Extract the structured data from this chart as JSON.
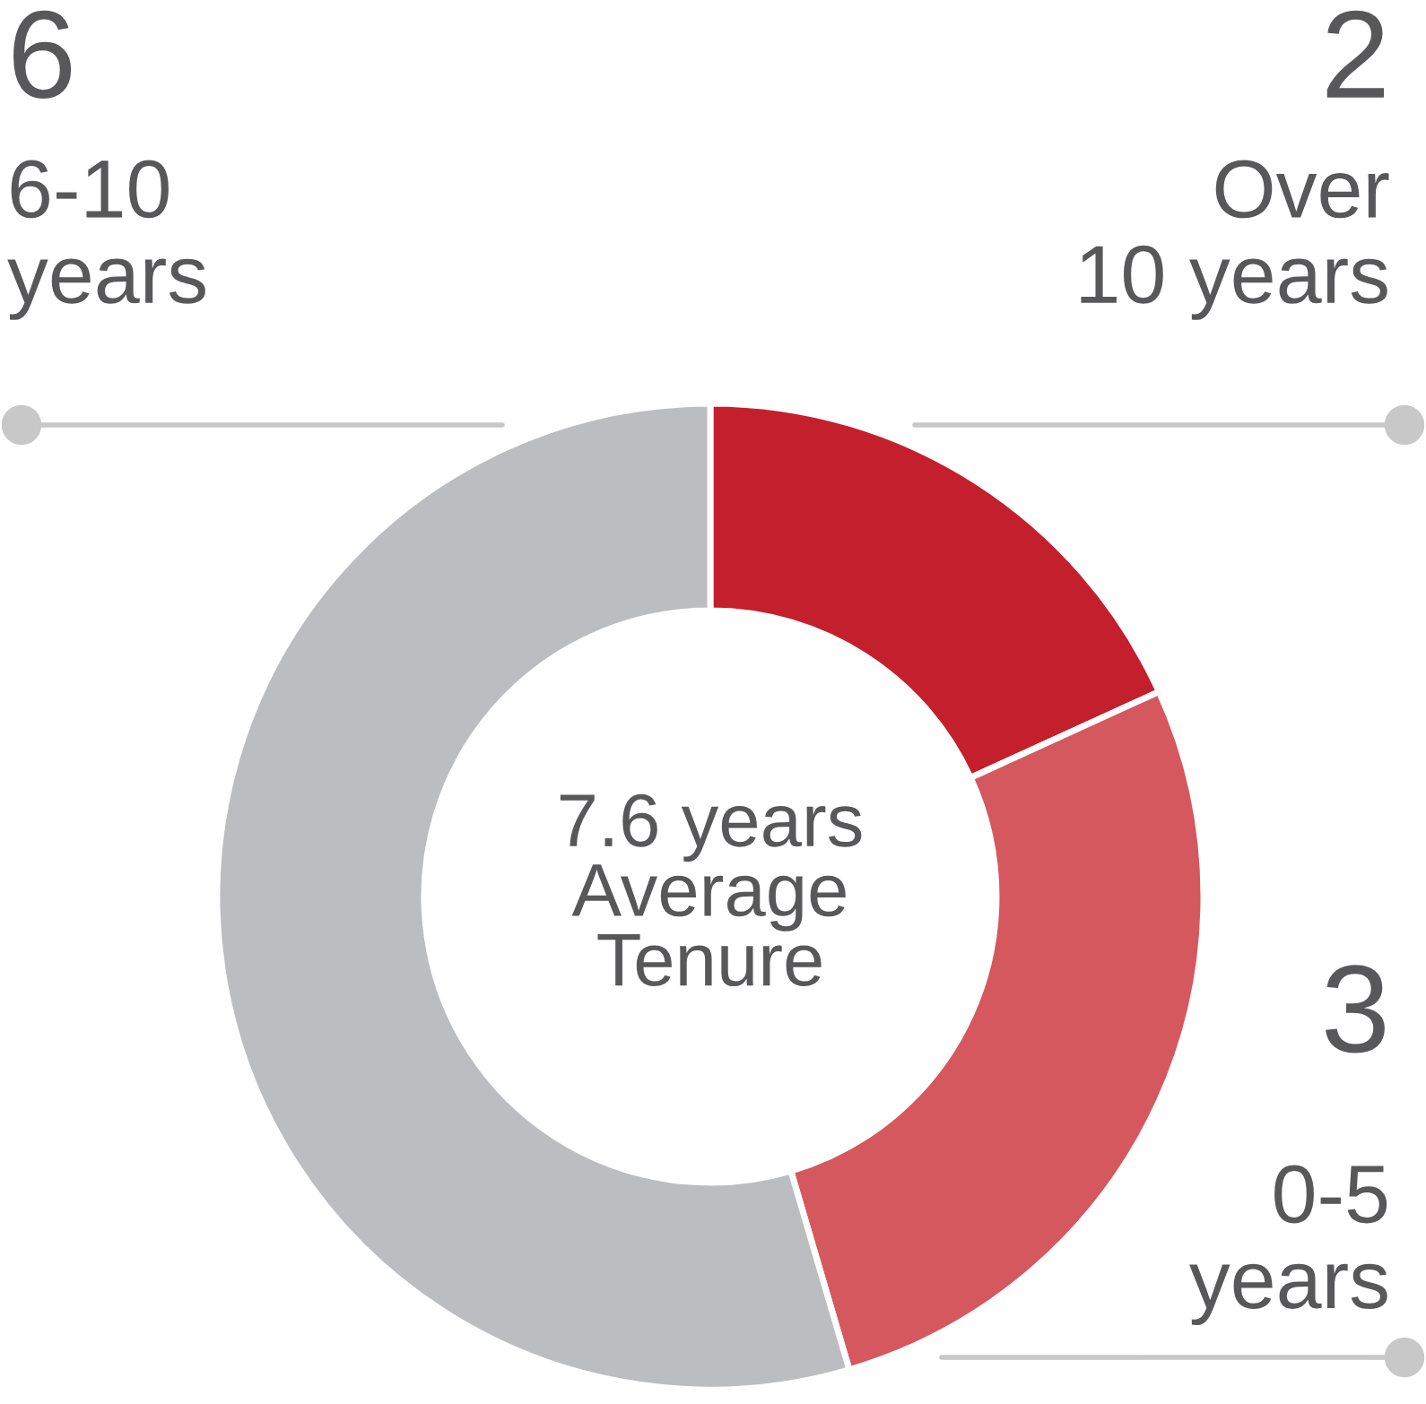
{
  "chart_data": {
    "type": "donut",
    "categories": [
      "Over\n10 years",
      "0-5\nyears",
      "6-10\nyears"
    ],
    "values": [
      2,
      3,
      6
    ],
    "colors": [
      "#c41f2c",
      "#d5585f",
      "#bcbdc0"
    ],
    "data_labels": true,
    "annotations": [
      "7.6 years\nAverage\nTenure"
    ]
  }
}
